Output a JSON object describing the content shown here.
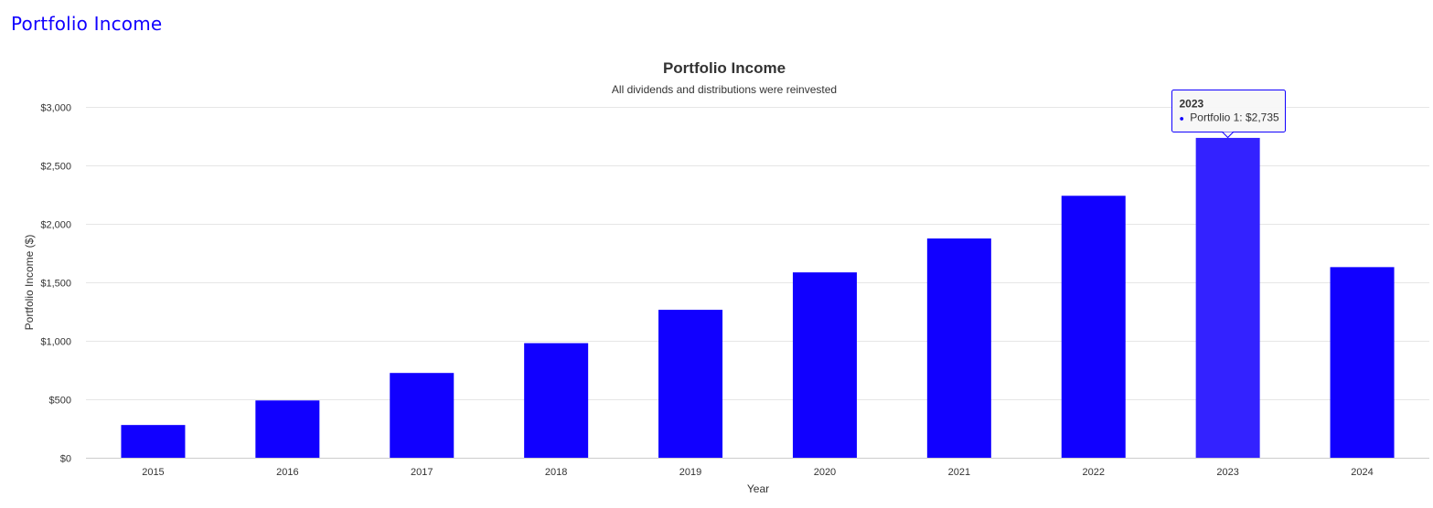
{
  "page": {
    "heading": "Portfolio Income"
  },
  "colors": {
    "accent": "#1100ff",
    "bar": "#1100ff",
    "bar_hover": "#3322ff"
  },
  "tooltip": {
    "title": "2023",
    "bullet": "●",
    "text": "Portfolio 1: $2,735"
  },
  "chart_data": {
    "type": "bar",
    "title": "Portfolio Income",
    "subtitle": "All dividends and distributions were reinvested",
    "xlabel": "Year",
    "ylabel": "Portfolio Income ($)",
    "categories": [
      "2015",
      "2016",
      "2017",
      "2018",
      "2019",
      "2020",
      "2021",
      "2022",
      "2023",
      "2024"
    ],
    "series": [
      {
        "name": "Portfolio 1",
        "values": [
          280,
          490,
          725,
          980,
          1265,
          1585,
          1875,
          2240,
          2735,
          1630
        ]
      }
    ],
    "ylim": [
      0,
      3000
    ],
    "yticks": [
      0,
      500,
      1000,
      1500,
      2000,
      2500,
      3000
    ],
    "ytick_labels": [
      "$0",
      "$500",
      "$1,000",
      "$1,500",
      "$2,000",
      "$2,500",
      "$3,000"
    ],
    "grid": true,
    "highlighted_category": "2023"
  }
}
